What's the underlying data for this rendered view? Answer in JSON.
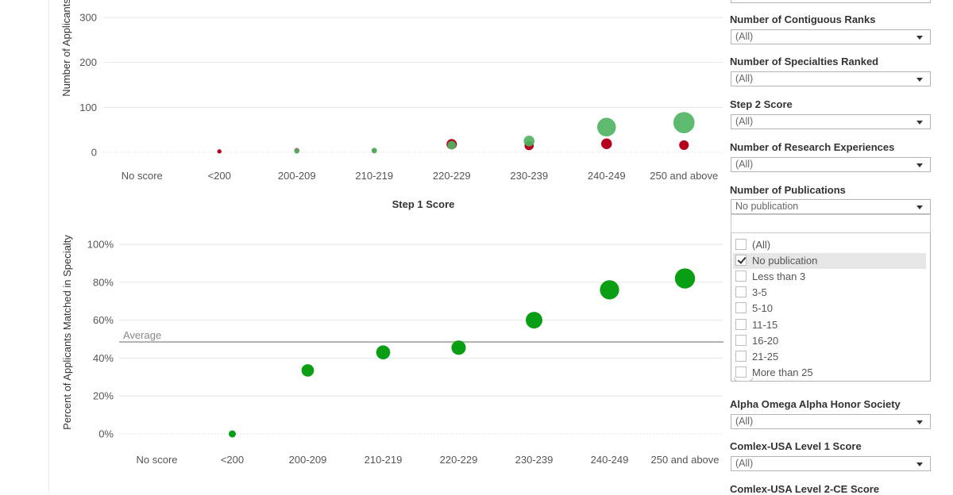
{
  "chart_data": [
    {
      "type": "scatter",
      "title": "",
      "ylabel": "Number of Applicants",
      "xlabel": "Step 1 Score",
      "categories": [
        "No score",
        "<200",
        "200-209",
        "210-219",
        "220-229",
        "230-239",
        "240-249",
        "250 and above"
      ],
      "y_ticks": [
        "0",
        "100",
        "200",
        "300"
      ],
      "ylim": [
        0,
        300
      ],
      "grid": true,
      "series": [
        {
          "color": "#b5001e",
          "values": [
            null,
            2,
            4,
            3,
            18,
            15,
            19,
            16
          ]
        },
        {
          "color": "#4fb463",
          "values": [
            null,
            null,
            3,
            4,
            16,
            25,
            56,
            66
          ]
        }
      ]
    },
    {
      "type": "scatter",
      "title": "",
      "ylabel": "Percent of Applicants Matched in Specialty",
      "xlabel": "",
      "categories": [
        "No score",
        "<200",
        "200-209",
        "210-219",
        "220-229",
        "230-239",
        "240-249",
        "250 and above"
      ],
      "y_ticks": [
        "0%",
        "20%",
        "40%",
        "60%",
        "80%",
        "100%"
      ],
      "ylim": [
        0,
        100
      ],
      "grid": true,
      "reference_line": {
        "label": "Average",
        "value": 48.5
      },
      "series": [
        {
          "color": "#0a9e14",
          "values": [
            null,
            0,
            33.5,
            43,
            45.5,
            60,
            76,
            82
          ]
        }
      ]
    }
  ],
  "filters": {
    "items": [
      {
        "label": "Number of Contiguous Ranks",
        "value": "(All)"
      },
      {
        "label": "Number of Specialties Ranked",
        "value": "(All)"
      },
      {
        "label": "Step 2 Score",
        "value": "(All)"
      },
      {
        "label": "Number of Research Experiences",
        "value": "(All)"
      },
      {
        "label": "Number of Publications",
        "value": "No publication"
      },
      {
        "label": "Alpha Omega Alpha Honor Society",
        "value": "(All)"
      },
      {
        "label": "Comlex-USA Level 1 Score",
        "value": "(All)"
      },
      {
        "label": "Comlex-USA Level 2-CE Score",
        "value": ""
      }
    ],
    "publications_dropdown": {
      "options": [
        {
          "label": "(All)",
          "checked": false
        },
        {
          "label": "No publication",
          "checked": true
        },
        {
          "label": "Less than 3",
          "checked": false
        },
        {
          "label": "3-5",
          "checked": false
        },
        {
          "label": "5-10",
          "checked": false
        },
        {
          "label": "11-15",
          "checked": false
        },
        {
          "label": "16-20",
          "checked": false
        },
        {
          "label": "21-25",
          "checked": false
        },
        {
          "label": "More than 25",
          "checked": false
        }
      ]
    }
  }
}
